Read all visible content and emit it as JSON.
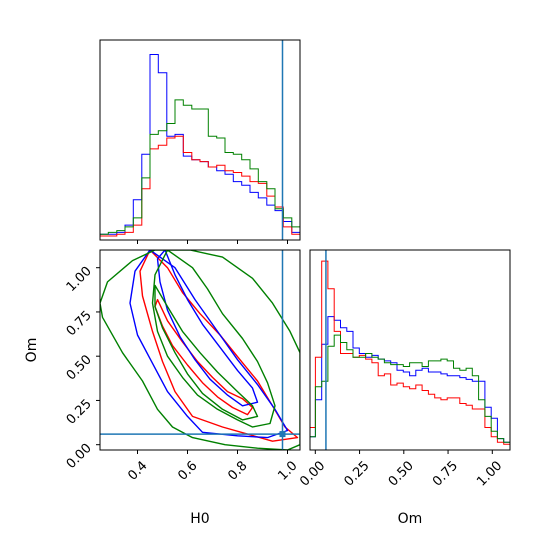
{
  "colors": {
    "blue": "#0000ff",
    "red": "#ff0000",
    "green": "#008000",
    "truth": "#1f77b4",
    "frame": "#000000"
  },
  "chart_data": {
    "type": "corner",
    "parameters": [
      "H0",
      "Om"
    ],
    "truth": {
      "H0": 0.98,
      "Om": 0.06
    },
    "axes": {
      "H0": {
        "range": [
          0.25,
          1.05
        ],
        "ticks": [
          "0.4",
          "0.6",
          "0.8",
          "1.0"
        ]
      },
      "Om": {
        "range": [
          -0.03,
          1.1
        ],
        "ticks": [
          "0.00",
          "0.25",
          "0.50",
          "0.75",
          "1.00"
        ],
        "hist_ticks": [
          "0.00",
          "0.25",
          "0.50",
          "0.75",
          "1.00"
        ]
      }
    },
    "histograms": {
      "H0": {
        "bins": [
          0.25,
          0.283,
          0.317,
          0.35,
          0.383,
          0.417,
          0.45,
          0.483,
          0.517,
          0.55,
          0.583,
          0.617,
          0.65,
          0.683,
          0.717,
          0.75,
          0.783,
          0.817,
          0.85,
          0.883,
          0.917,
          0.95,
          0.983,
          1.017,
          1.05
        ],
        "series": [
          {
            "color": "blue",
            "counts": [
              0.01,
              0.01,
              0.02,
              0.06,
              0.2,
              0.45,
              1.0,
              0.9,
              0.55,
              0.56,
              0.44,
              0.42,
              0.41,
              0.38,
              0.36,
              0.34,
              0.3,
              0.28,
              0.24,
              0.21,
              0.17,
              0.14,
              0.08,
              0.02
            ]
          },
          {
            "color": "red",
            "counts": [
              0.0,
              0.0,
              0.01,
              0.02,
              0.06,
              0.26,
              0.48,
              0.5,
              0.54,
              0.55,
              0.46,
              0.42,
              0.41,
              0.38,
              0.39,
              0.36,
              0.35,
              0.33,
              0.3,
              0.29,
              0.22,
              0.16,
              0.05,
              0.01
            ]
          },
          {
            "color": "green",
            "counts": [
              0.01,
              0.02,
              0.03,
              0.05,
              0.1,
              0.32,
              0.56,
              0.58,
              0.62,
              0.75,
              0.72,
              0.7,
              0.7,
              0.55,
              0.54,
              0.46,
              0.45,
              0.42,
              0.37,
              0.3,
              0.26,
              0.15,
              0.1,
              0.05
            ]
          }
        ]
      },
      "Om": {
        "bins": [
          -0.03,
          0.0,
          0.035,
          0.07,
          0.105,
          0.14,
          0.175,
          0.21,
          0.245,
          0.28,
          0.315,
          0.35,
          0.385,
          0.42,
          0.455,
          0.49,
          0.525,
          0.56,
          0.595,
          0.63,
          0.665,
          0.7,
          0.735,
          0.77,
          0.805,
          0.84,
          0.875,
          0.91,
          0.945,
          0.98,
          1.015,
          1.05,
          1.085
        ],
        "series": [
          {
            "color": "blue",
            "counts": [
              0.05,
              0.25,
              0.55,
              0.7,
              0.68,
              0.64,
              0.62,
              0.53,
              0.5,
              0.48,
              0.49,
              0.47,
              0.46,
              0.45,
              0.41,
              0.4,
              0.38,
              0.41,
              0.42,
              0.4,
              0.4,
              0.39,
              0.38,
              0.38,
              0.37,
              0.36,
              0.35,
              0.35,
              0.21,
              0.15,
              0.04,
              0.02
            ]
          },
          {
            "color": "red",
            "counts": [
              0.1,
              0.48,
              1.0,
              0.85,
              0.62,
              0.5,
              0.5,
              0.48,
              0.49,
              0.47,
              0.45,
              0.38,
              0.39,
              0.33,
              0.34,
              0.32,
              0.31,
              0.33,
              0.3,
              0.28,
              0.26,
              0.25,
              0.26,
              0.26,
              0.23,
              0.22,
              0.2,
              0.2,
              0.1,
              0.05,
              0.02,
              0.01
            ]
          },
          {
            "color": "green",
            "counts": [
              0.05,
              0.32,
              0.35,
              0.54,
              0.6,
              0.56,
              0.52,
              0.48,
              0.48,
              0.5,
              0.48,
              0.47,
              0.45,
              0.44,
              0.44,
              0.43,
              0.45,
              0.45,
              0.43,
              0.46,
              0.46,
              0.47,
              0.46,
              0.42,
              0.41,
              0.42,
              0.38,
              0.25,
              0.16,
              0.08,
              0.04,
              0.02
            ]
          }
        ]
      }
    },
    "contours": [
      {
        "color": "red",
        "level": "inner",
        "points": [
          [
            0.48,
            0.82
          ],
          [
            0.52,
            0.7
          ],
          [
            0.58,
            0.58
          ],
          [
            0.64,
            0.47
          ],
          [
            0.7,
            0.38
          ],
          [
            0.76,
            0.3
          ],
          [
            0.82,
            0.26
          ],
          [
            0.86,
            0.21
          ],
          [
            0.84,
            0.17
          ],
          [
            0.78,
            0.21
          ],
          [
            0.72,
            0.27
          ],
          [
            0.66,
            0.35
          ],
          [
            0.6,
            0.45
          ],
          [
            0.54,
            0.56
          ],
          [
            0.5,
            0.67
          ],
          [
            0.47,
            0.78
          ]
        ]
      },
      {
        "color": "red",
        "level": "outer",
        "points": [
          [
            0.45,
            1.1
          ],
          [
            0.52,
            1.0
          ],
          [
            0.58,
            0.86
          ],
          [
            0.65,
            0.74
          ],
          [
            0.73,
            0.62
          ],
          [
            0.81,
            0.48
          ],
          [
            0.88,
            0.36
          ],
          [
            0.94,
            0.22
          ],
          [
            0.99,
            0.1
          ],
          [
            1.04,
            0.04
          ],
          [
            0.94,
            0.02
          ],
          [
            0.84,
            0.06
          ],
          [
            0.74,
            0.1
          ],
          [
            0.62,
            0.16
          ],
          [
            0.55,
            0.3
          ],
          [
            0.5,
            0.47
          ],
          [
            0.46,
            0.64
          ],
          [
            0.42,
            0.84
          ],
          [
            0.41,
            0.98
          ]
        ]
      },
      {
        "color": "blue",
        "level": "inner",
        "points": [
          [
            0.51,
            1.1
          ],
          [
            0.55,
            0.96
          ],
          [
            0.6,
            0.82
          ],
          [
            0.66,
            0.68
          ],
          [
            0.73,
            0.55
          ],
          [
            0.8,
            0.42
          ],
          [
            0.86,
            0.32
          ],
          [
            0.88,
            0.24
          ],
          [
            0.82,
            0.22
          ],
          [
            0.76,
            0.28
          ],
          [
            0.69,
            0.37
          ],
          [
            0.63,
            0.48
          ],
          [
            0.57,
            0.61
          ],
          [
            0.52,
            0.76
          ],
          [
            0.49,
            0.92
          ],
          [
            0.48,
            1.05
          ]
        ]
      },
      {
        "color": "blue",
        "level": "outer",
        "points": [
          [
            0.45,
            1.1
          ],
          [
            0.55,
            1.0
          ],
          [
            0.63,
            0.82
          ],
          [
            0.72,
            0.64
          ],
          [
            0.8,
            0.48
          ],
          [
            0.88,
            0.34
          ],
          [
            0.95,
            0.2
          ],
          [
            1.0,
            0.08
          ],
          [
            0.92,
            0.04
          ],
          [
            0.8,
            0.05
          ],
          [
            0.66,
            0.07
          ],
          [
            0.6,
            0.16
          ],
          [
            0.52,
            0.3
          ],
          [
            0.46,
            0.46
          ],
          [
            0.4,
            0.62
          ],
          [
            0.37,
            0.8
          ],
          [
            0.39,
            0.98
          ]
        ]
      },
      {
        "color": "green",
        "level": "inner",
        "points": [
          [
            0.47,
            0.9
          ],
          [
            0.52,
            0.78
          ],
          [
            0.58,
            0.64
          ],
          [
            0.65,
            0.52
          ],
          [
            0.72,
            0.41
          ],
          [
            0.8,
            0.3
          ],
          [
            0.86,
            0.22
          ],
          [
            0.88,
            0.16
          ],
          [
            0.82,
            0.14
          ],
          [
            0.74,
            0.2
          ],
          [
            0.66,
            0.29
          ],
          [
            0.6,
            0.4
          ],
          [
            0.55,
            0.52
          ],
          [
            0.5,
            0.66
          ],
          [
            0.47,
            0.78
          ]
        ]
      },
      {
        "color": "green",
        "level": "middle",
        "points": [
          [
            0.52,
            1.1
          ],
          [
            0.62,
            1.0
          ],
          [
            0.68,
            0.88
          ],
          [
            0.74,
            0.74
          ],
          [
            0.82,
            0.6
          ],
          [
            0.88,
            0.47
          ],
          [
            0.92,
            0.35
          ],
          [
            0.95,
            0.22
          ],
          [
            0.93,
            0.12
          ],
          [
            0.86,
            0.1
          ],
          [
            0.8,
            0.14
          ],
          [
            0.72,
            0.2
          ],
          [
            0.64,
            0.28
          ],
          [
            0.58,
            0.38
          ],
          [
            0.52,
            0.5
          ],
          [
            0.48,
            0.64
          ],
          [
            0.46,
            0.8
          ],
          [
            0.47,
            0.96
          ]
        ]
      },
      {
        "color": "green",
        "level": "outer",
        "points": [
          [
            0.61,
            1.1
          ],
          [
            0.74,
            1.06
          ],
          [
            0.86,
            0.94
          ],
          [
            0.94,
            0.8
          ],
          [
            1.01,
            0.64
          ],
          [
            1.05,
            0.52
          ],
          [
            1.05,
            0.0
          ],
          [
            1.0,
            -0.03
          ],
          [
            0.88,
            -0.02
          ],
          [
            0.75,
            0.0
          ],
          [
            0.62,
            0.04
          ],
          [
            0.54,
            0.1
          ],
          [
            0.48,
            0.2
          ],
          [
            0.42,
            0.36
          ],
          [
            0.34,
            0.52
          ],
          [
            0.26,
            0.72
          ],
          [
            0.25,
            0.8
          ],
          [
            0.28,
            0.92
          ],
          [
            0.38,
            1.04
          ],
          [
            0.47,
            1.1
          ]
        ]
      }
    ]
  }
}
